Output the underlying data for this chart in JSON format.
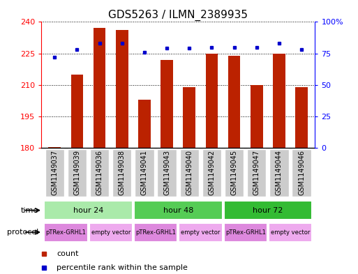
{
  "title": "GDS5263 / ILMN_2389935",
  "samples": [
    "GSM1149037",
    "GSM1149039",
    "GSM1149036",
    "GSM1149038",
    "GSM1149041",
    "GSM1149043",
    "GSM1149040",
    "GSM1149042",
    "GSM1149045",
    "GSM1149047",
    "GSM1149044",
    "GSM1149046"
  ],
  "counts": [
    180.5,
    215,
    237,
    236,
    203,
    222,
    209,
    225,
    224,
    210,
    225,
    209
  ],
  "percentile_ranks": [
    72,
    78,
    83,
    83,
    76,
    79,
    79,
    80,
    80,
    80,
    83,
    78
  ],
  "ylim_left": [
    180,
    240
  ],
  "ylim_right": [
    0,
    100
  ],
  "yticks_left": [
    180,
    195,
    210,
    225,
    240
  ],
  "yticks_right": [
    0,
    25,
    50,
    75,
    100
  ],
  "yticklabels_right": [
    "0",
    "25",
    "50",
    "75",
    "100%"
  ],
  "bar_color": "#bb2200",
  "dot_color": "#0000cc",
  "background_color": "#ffffff",
  "sample_box_color": "#cccccc",
  "time_groups": [
    {
      "label": "hour 24",
      "start": 0,
      "end": 3,
      "color": "#aaeaaa"
    },
    {
      "label": "hour 48",
      "start": 4,
      "end": 7,
      "color": "#55cc55"
    },
    {
      "label": "hour 72",
      "start": 8,
      "end": 11,
      "color": "#33bb33"
    }
  ],
  "protocol_groups": [
    {
      "label": "pTRex-GRHL1",
      "start": 0,
      "end": 1,
      "color": "#dd88dd"
    },
    {
      "label": "empty vector",
      "start": 2,
      "end": 3,
      "color": "#eeaaee"
    },
    {
      "label": "pTRex-GRHL1",
      "start": 4,
      "end": 5,
      "color": "#dd88dd"
    },
    {
      "label": "empty vector",
      "start": 6,
      "end": 7,
      "color": "#eeaaee"
    },
    {
      "label": "pTRex-GRHL1",
      "start": 8,
      "end": 9,
      "color": "#dd88dd"
    },
    {
      "label": "empty vector",
      "start": 10,
      "end": 11,
      "color": "#eeaaee"
    }
  ],
  "legend_items": [
    {
      "label": "count",
      "color": "#bb2200"
    },
    {
      "label": "percentile rank within the sample",
      "color": "#0000cc"
    }
  ],
  "title_fontsize": 11,
  "tick_fontsize": 8,
  "small_fontsize": 7
}
